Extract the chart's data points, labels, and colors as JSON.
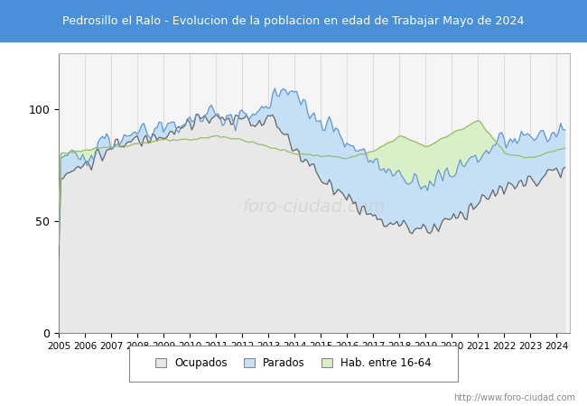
{
  "title": "Pedrosillo el Ralo - Evolucion de la poblacion en edad de Trabajar Mayo de 2024",
  "title_bg_color": "#4a90d9",
  "title_text_color": "white",
  "ylim": [
    0,
    125
  ],
  "yticks": [
    0,
    50,
    100
  ],
  "start_year": 2005,
  "end_year": 2024,
  "watermark": "foro-ciudad.com",
  "legend_labels": [
    "Ocupados",
    "Parados",
    "Hab. entre 16-64"
  ],
  "ocupados_fill_color": "#e8e8e8",
  "parados_fill_color": "#c5e0f5",
  "hab_fill_color": "#d8efc8",
  "ocupados_line_color": "#666666",
  "parados_line_color": "#6699cc",
  "hab_line_color": "#99bb66",
  "plot_bg_color": "#f5f5f5",
  "grid_color": "#dddddd"
}
